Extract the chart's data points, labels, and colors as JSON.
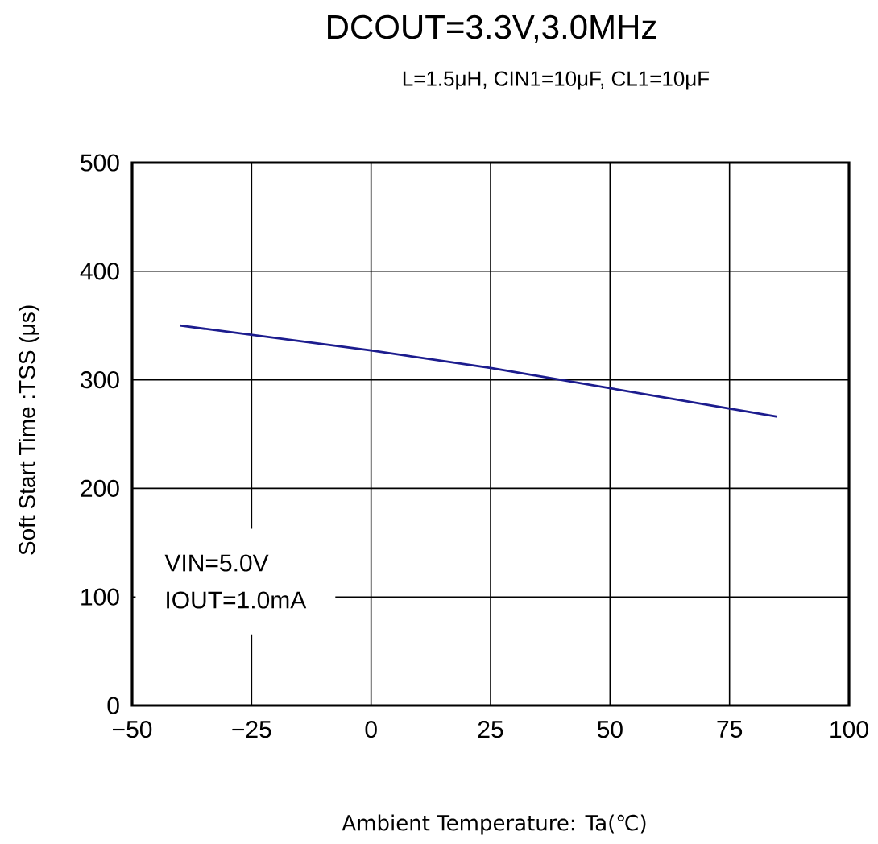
{
  "chart_data": {
    "type": "line",
    "title": "DCOUT=3.3V,3.0MHz",
    "subtitle": "L=1.5μH, CIN1=10μF, CL1=10μF",
    "xlabel": "Ambient Temperature: Ta(℃)",
    "ylabel": "Soft Start Time :TSS (μs)",
    "annotations": [
      "VIN=5.0V",
      "IOUT=1.0mA"
    ],
    "series": [
      {
        "color": "#1c1c8e",
        "x": [
          -40,
          0,
          25,
          85
        ],
        "values": [
          350,
          327,
          311,
          266
        ]
      }
    ],
    "xlim": [
      -50,
      100
    ],
    "ylim": [
      0,
      500
    ],
    "xticks": [
      {
        "value": -50,
        "label": "−50"
      },
      {
        "value": -25,
        "label": "−25"
      },
      0,
      25,
      50,
      75,
      100
    ],
    "yticks": [
      0,
      100,
      200,
      300,
      400,
      500
    ],
    "grid": true,
    "marker": "none",
    "line_style": "solid"
  }
}
